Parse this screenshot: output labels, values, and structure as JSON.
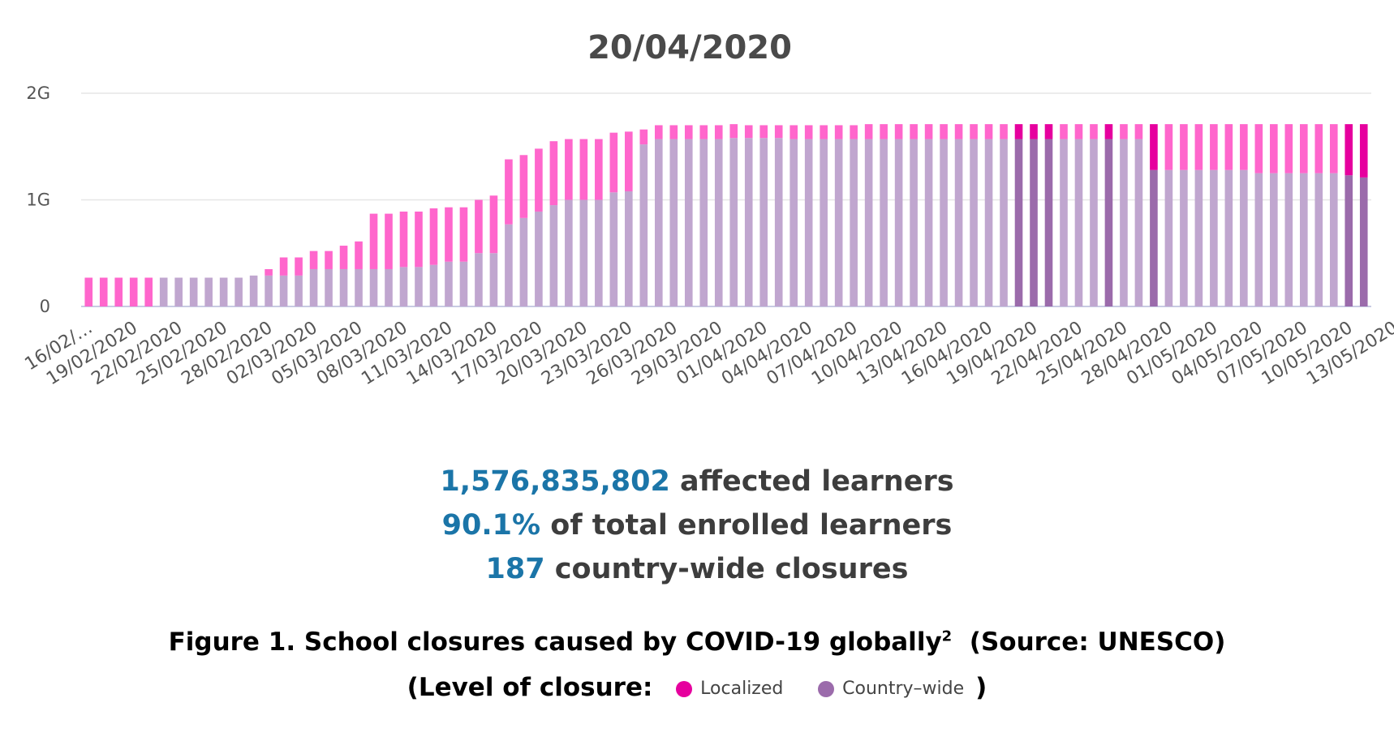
{
  "chart_data": {
    "type": "bar",
    "stacked": true,
    "title": "20/04/2020",
    "ylabel": "",
    "xlabel": "",
    "ylim": [
      0,
      2000000000
    ],
    "y_tick_labels": [
      "0",
      "1G",
      "2G"
    ],
    "y_tick_values": [
      0,
      1000000000,
      2000000000
    ],
    "x_tick_labels": [
      "16/02/…",
      "19/02/2020",
      "22/02/2020",
      "25/02/2020",
      "28/02/2020",
      "02/03/2020",
      "05/03/2020",
      "08/03/2020",
      "11/03/2020",
      "14/03/2020",
      "17/03/2020",
      "20/03/2020",
      "23/03/2020",
      "26/03/2020",
      "29/03/2020",
      "01/04/2020",
      "04/04/2020",
      "07/04/2020",
      "10/04/2020",
      "13/04/2020",
      "16/04/2020",
      "19/04/2020",
      "22/04/2020",
      "25/04/2020",
      "28/04/2020",
      "01/05/2020",
      "04/05/2020",
      "07/05/2020",
      "10/05/2020",
      "13/05/2020"
    ],
    "first_date": "16/02/2020",
    "series": [
      {
        "name": "Country-wide",
        "color": "#c0a6cf",
        "highlight_color": "#9b6bab",
        "values": [
          0,
          0,
          0,
          0,
          0,
          270,
          270,
          270,
          270,
          270,
          270,
          290,
          290,
          290,
          290,
          350,
          350,
          350,
          350,
          350,
          350,
          370,
          370,
          390,
          420,
          420,
          500,
          500,
          770,
          830,
          890,
          950,
          1000,
          1000,
          1000,
          1070,
          1080,
          1520,
          1570,
          1570,
          1570,
          1570,
          1570,
          1580,
          1580,
          1580,
          1580,
          1570,
          1570,
          1570,
          1570,
          1570,
          1570,
          1570,
          1570,
          1570,
          1570,
          1570,
          1570,
          1570,
          1570,
          1570,
          1570,
          1570,
          1570,
          1570,
          1570,
          1570,
          1570,
          1570,
          1570,
          1280,
          1280,
          1280,
          1280,
          1280,
          1280,
          1280,
          1250,
          1250,
          1250,
          1250,
          1250,
          1250,
          1230,
          1210
        ]
      },
      {
        "name": "Localized",
        "color": "#ff66cc",
        "highlight_color": "#e6009e",
        "values": [
          270,
          270,
          270,
          270,
          270,
          0,
          0,
          0,
          0,
          0,
          0,
          0,
          60,
          170,
          170,
          170,
          170,
          220,
          260,
          520,
          520,
          520,
          520,
          530,
          510,
          510,
          500,
          540,
          610,
          590,
          590,
          600,
          570,
          570,
          570,
          560,
          560,
          140,
          130,
          130,
          130,
          130,
          130,
          130,
          120,
          120,
          120,
          130,
          130,
          130,
          130,
          130,
          140,
          140,
          140,
          140,
          140,
          140,
          140,
          140,
          140,
          140,
          140,
          140,
          140,
          140,
          140,
          140,
          140,
          140,
          140,
          430,
          430,
          430,
          430,
          430,
          430,
          430,
          460,
          460,
          460,
          460,
          460,
          460,
          480,
          500
        ]
      }
    ],
    "highlight_indices": [
      62,
      63,
      64,
      68,
      71,
      84,
      85
    ],
    "legend": [
      {
        "label": "Localized",
        "color": "#e6009e"
      },
      {
        "label": "Country–wide",
        "color": "#9b6bab"
      }
    ],
    "legend_position": "bottom"
  },
  "stats": {
    "affected_number": "1,576,835,802",
    "affected_text": "affected learners",
    "percent": "90.1%",
    "percent_text": "of total enrolled learners",
    "closures_number": "187",
    "closures_text": "country-wide closures"
  },
  "caption": {
    "text": "Figure 1. School closures caused by COVID-19 globally",
    "footnote": "2",
    "source": "(Source: UNESCO)",
    "legend_prefix": "(Level of closure:",
    "legend_suffix": ")"
  }
}
